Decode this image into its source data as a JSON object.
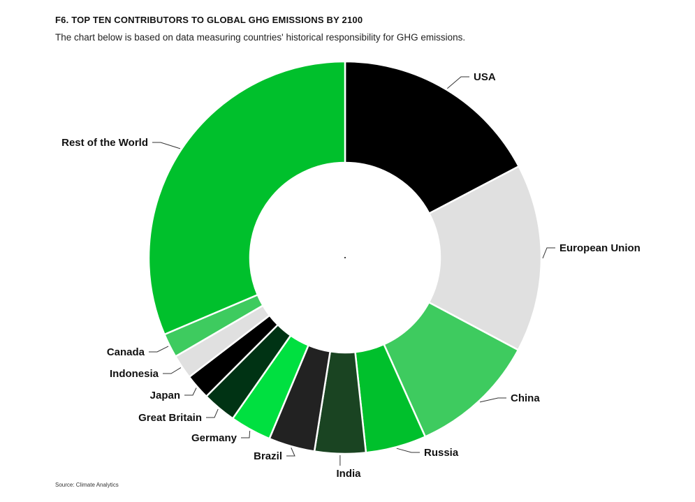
{
  "header": {
    "title": "F6. TOP TEN CONTRIBUTORS TO GLOBAL GHG EMISSIONS BY 2100",
    "subtitle": "The chart below is based on data measuring countries' historical responsibility for GHG emissions."
  },
  "footer": {
    "source": "Source: Climate Analytics"
  },
  "chart_data": {
    "type": "pie",
    "variant": "donut",
    "title": "F6. TOP TEN CONTRIBUTORS TO GLOBAL GHG EMISSIONS BY 2100",
    "subtitle": "The chart below is based on data measuring countries' historical responsibility for GHG emissions.",
    "unit": "percent share (estimated)",
    "legend": "none (direct labels)",
    "slices": [
      {
        "label": "USA",
        "value": 17.3,
        "color": "#000000"
      },
      {
        "label": "European Union",
        "value": 15.5,
        "color": "#e0e0e0"
      },
      {
        "label": "China",
        "value": 10.5,
        "color": "#3ecb5f"
      },
      {
        "label": "Russia",
        "value": 5.0,
        "color": "#00c02c"
      },
      {
        "label": "India",
        "value": 4.2,
        "color": "#1a4422"
      },
      {
        "label": "Brazil",
        "value": 3.8,
        "color": "#222222"
      },
      {
        "label": "Germany",
        "value": 3.4,
        "color": "#00e040"
      },
      {
        "label": "Great Britain",
        "value": 2.8,
        "color": "#003314"
      },
      {
        "label": "Japan",
        "value": 2.1,
        "color": "#000000"
      },
      {
        "label": "Indonesia",
        "value": 2.0,
        "color": "#e0e0e0"
      },
      {
        "label": "Canada",
        "value": 2.0,
        "color": "#3ecb5f"
      },
      {
        "label": "Rest of the World",
        "value": 31.4,
        "color": "#00c02c"
      }
    ]
  }
}
